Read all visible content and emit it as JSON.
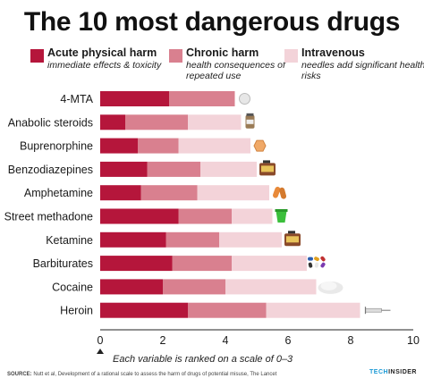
{
  "chart_data": {
    "type": "bar",
    "stacked": true,
    "orientation": "horizontal",
    "title": "The 10 most dangerous drugs",
    "categories": [
      "4-MTA",
      "Anabolic steroids",
      "Buprenorphine",
      "Benzodiazepines",
      "Amphetamine",
      "Street methadone",
      "Ketamine",
      "Barbiturates",
      "Cocaine",
      "Heroin"
    ],
    "series": [
      {
        "name": "Acute physical harm",
        "description": "immediate effects & toxicity",
        "color": "#b5163b",
        "values": [
          2.2,
          0.8,
          1.2,
          1.5,
          1.3,
          2.5,
          2.1,
          2.3,
          2.0,
          2.8
        ]
      },
      {
        "name": "Chronic harm",
        "description": "health consequences of repeated use",
        "color": "#d9808f",
        "values": [
          2.1,
          2.0,
          1.3,
          1.7,
          1.8,
          1.7,
          1.7,
          1.9,
          2.0,
          2.5
        ]
      },
      {
        "name": "Intravenous",
        "description": "needles add significant health risks",
        "color": "#f3d3d9",
        "values": [
          0.0,
          1.7,
          2.3,
          1.8,
          2.3,
          1.3,
          2.0,
          2.4,
          2.9,
          3.0
        ]
      }
    ],
    "xlim": [
      0,
      10
    ],
    "xticks": [
      "0",
      "2",
      "4",
      "6",
      "8",
      "10"
    ],
    "grid": false,
    "legend_position": "top",
    "note": "Each variable is ranked on a scale of 0–3"
  },
  "footer": {
    "source_label": "SOURCE:",
    "source_text": "Nutt et al, Development of a rational scale to assess the harm of drugs of potential misuse, The Lancet",
    "brand_part1": "TECH",
    "brand_part2": "INSIDER"
  },
  "icons": [
    "pill-icon",
    "vial-icon",
    "pill-icon",
    "bottle-icon",
    "capsule-icon",
    "cup-icon",
    "bottle-icon",
    "pills-icon",
    "powder-icon",
    "syringe-icon"
  ]
}
